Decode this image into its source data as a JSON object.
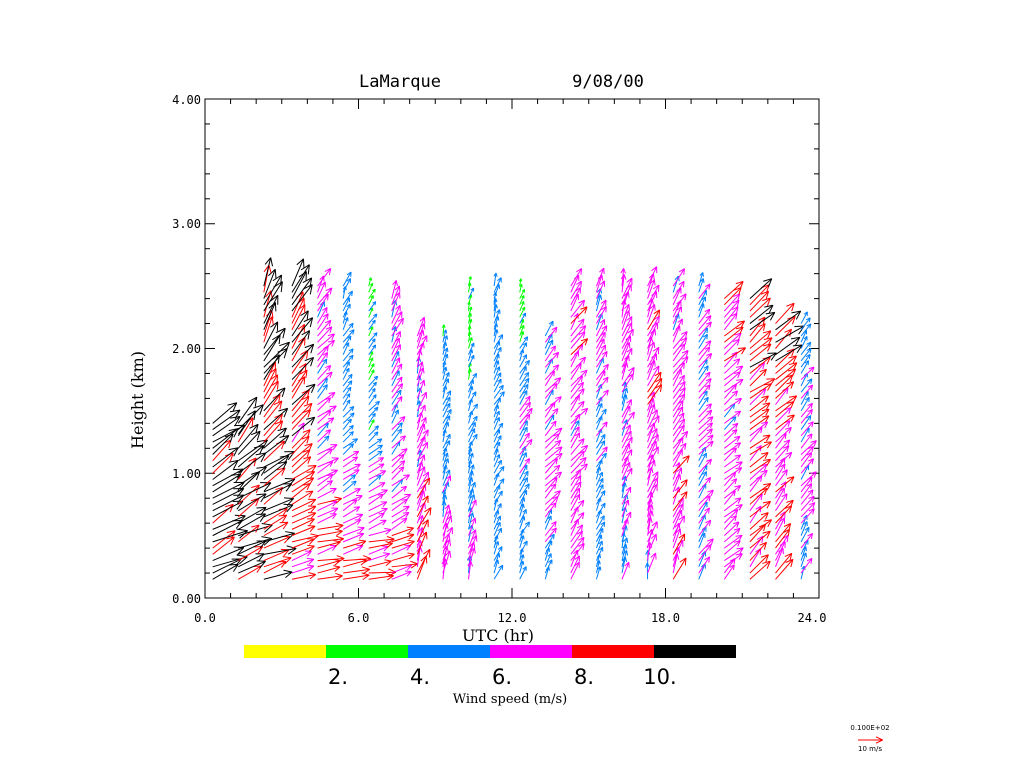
{
  "chart_data": {
    "type": "wind-profile-vector",
    "title_station": "LaMarque",
    "title_date": "9/08/00",
    "xlabel": "UTC (hr)",
    "ylabel": "Height (km)",
    "xlim": [
      0,
      24
    ],
    "ylim": [
      0,
      4
    ],
    "x_ticks": [
      "0.0",
      "6.0",
      "12.0",
      "18.0",
      "24.0"
    ],
    "y_ticks": [
      "0.00",
      "1.00",
      "2.00",
      "3.00",
      "4.00"
    ],
    "colorbar": {
      "label": "Wind speed (m/s)",
      "tick_labels": [
        "2.",
        "4.",
        "6.",
        "8.",
        "10."
      ],
      "bins": [
        {
          "min": 0,
          "max": 2,
          "color": "#ffff00"
        },
        {
          "min": 2,
          "max": 4,
          "color": "#00ff00"
        },
        {
          "min": 4,
          "max": 6,
          "color": "#0080ff"
        },
        {
          "min": 6,
          "max": 8,
          "color": "#ff00ff"
        },
        {
          "min": 8,
          "max": 10,
          "color": "#ff0000"
        },
        {
          "min": 10,
          "max": 99,
          "color": "#000000"
        }
      ]
    },
    "reference_vector": {
      "value_label": "0.100E+02",
      "units_label": "10 m/s",
      "speed": 10,
      "color": "#ff0000"
    },
    "sample_spacing_km": 0.05,
    "profiles": [
      {
        "t": 0.3,
        "top": 1.4,
        "low": {
          "dir": 245,
          "spd": 11
        },
        "mid": {
          "dir": 235,
          "spd": 11
        },
        "high": {
          "dir": 230,
          "spd": 11
        }
      },
      {
        "t": 1.3,
        "top": 1.4,
        "low": {
          "dir": 250,
          "spd": 10.5
        },
        "mid": {
          "dir": 235,
          "spd": 11
        },
        "high": {
          "dir": 215,
          "spd": 11
        }
      },
      {
        "t": 2.3,
        "top": 2.5,
        "low": {
          "dir": 255,
          "spd": 10
        },
        "mid": {
          "dir": 225,
          "spd": 10.5
        },
        "high": {
          "dir": 200,
          "spd": 11
        }
      },
      {
        "t": 3.4,
        "top": 2.5,
        "low": {
          "dir": 255,
          "spd": 8
        },
        "mid": {
          "dir": 220,
          "spd": 9
        },
        "high": {
          "dir": 205,
          "spd": 10.5
        }
      },
      {
        "t": 4.4,
        "top": 2.5,
        "low": {
          "dir": 260,
          "spd": 8.5
        },
        "mid": {
          "dir": 230,
          "spd": 6.5
        },
        "high": {
          "dir": 210,
          "spd": 7
        }
      },
      {
        "t": 5.4,
        "top": 2.5,
        "low": {
          "dir": 260,
          "spd": 9
        },
        "mid": {
          "dir": 225,
          "spd": 5
        },
        "high": {
          "dir": 200,
          "spd": 5
        }
      },
      {
        "t": 6.4,
        "top": 2.5,
        "low": {
          "dir": 265,
          "spd": 9
        },
        "mid": {
          "dir": 220,
          "spd": 4.5
        },
        "high": {
          "dir": 205,
          "spd": 3.5
        }
      },
      {
        "t": 7.3,
        "top": 2.4,
        "low": {
          "dir": 260,
          "spd": 8.5
        },
        "mid": {
          "dir": 215,
          "spd": 5.5
        },
        "high": {
          "dir": 200,
          "spd": 7
        }
      },
      {
        "t": 8.3,
        "top": 2.1,
        "low": {
          "dir": 200,
          "spd": 8.5
        },
        "mid": {
          "dir": 200,
          "spd": 6.5
        },
        "high": {
          "dir": 195,
          "spd": 6.5
        }
      },
      {
        "t": 9.3,
        "top": 2.1,
        "low": {
          "dir": 190,
          "spd": 7.5
        },
        "mid": {
          "dir": 200,
          "spd": 5
        },
        "high": {
          "dir": 195,
          "spd": 4.5
        }
      },
      {
        "t": 10.3,
        "top": 2.5,
        "low": {
          "dir": 190,
          "spd": 6.5
        },
        "mid": {
          "dir": 205,
          "spd": 5
        },
        "high": {
          "dir": 195,
          "spd": 3.5
        }
      },
      {
        "t": 11.3,
        "top": 2.5,
        "low": {
          "dir": 200,
          "spd": 5
        },
        "mid": {
          "dir": 210,
          "spd": 5
        },
        "high": {
          "dir": 195,
          "spd": 5
        }
      },
      {
        "t": 12.3,
        "top": 2.5,
        "low": {
          "dir": 200,
          "spd": 4.5
        },
        "mid": {
          "dir": 215,
          "spd": 6.5
        },
        "high": {
          "dir": 200,
          "spd": 3
        }
      },
      {
        "t": 13.3,
        "top": 2.1,
        "low": {
          "dir": 205,
          "spd": 5
        },
        "mid": {
          "dir": 225,
          "spd": 7
        },
        "high": {
          "dir": 210,
          "spd": 6
        }
      },
      {
        "t": 14.3,
        "top": 2.5,
        "low": {
          "dir": 205,
          "spd": 6.5
        },
        "mid": {
          "dir": 220,
          "spd": 7
        },
        "high": {
          "dir": 210,
          "spd": 7
        }
      },
      {
        "t": 15.3,
        "top": 2.5,
        "low": {
          "dir": 195,
          "spd": 4.5
        },
        "mid": {
          "dir": 210,
          "spd": 5.5
        },
        "high": {
          "dir": 200,
          "spd": 6.5
        }
      },
      {
        "t": 16.3,
        "top": 2.5,
        "low": {
          "dir": 190,
          "spd": 5.5
        },
        "mid": {
          "dir": 205,
          "spd": 6.5
        },
        "high": {
          "dir": 195,
          "spd": 7
        }
      },
      {
        "t": 17.3,
        "top": 2.5,
        "low": {
          "dir": 190,
          "spd": 6.5
        },
        "mid": {
          "dir": 205,
          "spd": 7.5
        },
        "high": {
          "dir": 200,
          "spd": 7
        }
      },
      {
        "t": 18.3,
        "top": 2.5,
        "low": {
          "dir": 200,
          "spd": 7.5
        },
        "mid": {
          "dir": 215,
          "spd": 7
        },
        "high": {
          "dir": 205,
          "spd": 6.5
        }
      },
      {
        "t": 19.3,
        "top": 2.5,
        "low": {
          "dir": 210,
          "spd": 6.5
        },
        "mid": {
          "dir": 220,
          "spd": 6
        },
        "high": {
          "dir": 205,
          "spd": 5.5
        }
      },
      {
        "t": 20.3,
        "top": 2.4,
        "low": {
          "dir": 225,
          "spd": 7
        },
        "mid": {
          "dir": 230,
          "spd": 6.5
        },
        "high": {
          "dir": 225,
          "spd": 8.5
        }
      },
      {
        "t": 21.3,
        "top": 2.4,
        "low": {
          "dir": 220,
          "spd": 8.5
        },
        "mid": {
          "dir": 230,
          "spd": 7.5
        },
        "high": {
          "dir": 230,
          "spd": 10.5
        }
      },
      {
        "t": 22.3,
        "top": 2.2,
        "low": {
          "dir": 210,
          "spd": 8
        },
        "mid": {
          "dir": 225,
          "spd": 7
        },
        "high": {
          "dir": 230,
          "spd": 10.5
        }
      },
      {
        "t": 23.3,
        "top": 2.2,
        "low": {
          "dir": 205,
          "spd": 5.5
        },
        "mid": {
          "dir": 220,
          "spd": 6.5
        },
        "high": {
          "dir": 215,
          "spd": 5
        }
      }
    ]
  }
}
